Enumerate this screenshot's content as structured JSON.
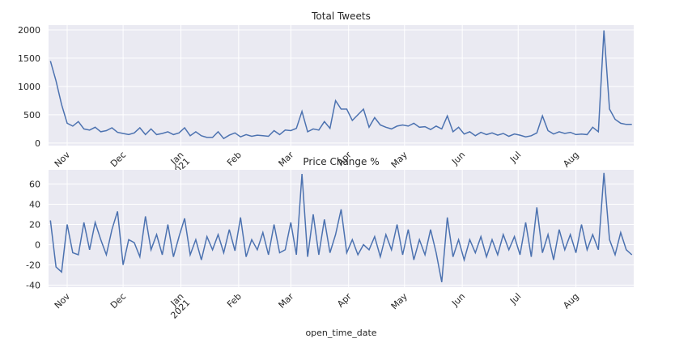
{
  "chart_data": [
    {
      "type": "line",
      "title": "Total Tweets",
      "x": [
        -9,
        -6,
        -3,
        0,
        3,
        6,
        9,
        12,
        15,
        18,
        21,
        24,
        27,
        30,
        33,
        36,
        39,
        42,
        45,
        48,
        51,
        54,
        57,
        60,
        63,
        66,
        69,
        72,
        75,
        78,
        81,
        84,
        87,
        90,
        93,
        96,
        99,
        102,
        105,
        108,
        111,
        114,
        117,
        120,
        123,
        126,
        129,
        132,
        135,
        138,
        141,
        144,
        147,
        150,
        153,
        156,
        159,
        162,
        165,
        168,
        171,
        174,
        177,
        180,
        183,
        186,
        189,
        192,
        195,
        198,
        201,
        204,
        207,
        210,
        213,
        216,
        219,
        222,
        225,
        228,
        231,
        234,
        237,
        240,
        243,
        246,
        249,
        252,
        255,
        258,
        261,
        264,
        267,
        270,
        273,
        276,
        279,
        282,
        285,
        288,
        291,
        294,
        297,
        300,
        303
      ],
      "series": [
        {
          "color": "#4c72b0",
          "values": [
            1450,
            1100,
            680,
            350,
            300,
            380,
            250,
            230,
            280,
            200,
            220,
            270,
            190,
            170,
            150,
            180,
            270,
            150,
            250,
            150,
            170,
            200,
            150,
            180,
            270,
            130,
            200,
            130,
            100,
            100,
            200,
            80,
            140,
            180,
            110,
            150,
            120,
            140,
            130,
            120,
            220,
            150,
            230,
            220,
            260,
            560,
            200,
            250,
            230,
            380,
            260,
            750,
            600,
            600,
            400,
            500,
            600,
            280,
            450,
            320,
            280,
            250,
            300,
            320,
            300,
            350,
            280,
            290,
            240,
            300,
            250,
            480,
            200,
            280,
            160,
            200,
            130,
            190,
            150,
            180,
            140,
            170,
            120,
            160,
            140,
            110,
            130,
            180,
            480,
            220,
            160,
            200,
            170,
            190,
            150,
            160,
            150,
            280,
            200,
            1990,
            600,
            420,
            350,
            330,
            330
          ]
        }
      ],
      "xlim": [
        -10,
        304
      ],
      "xticks": [
        {
          "value": 0,
          "label": "Nov"
        },
        {
          "value": 30,
          "label": "Dec"
        },
        {
          "value": 61,
          "label": "Jan\n2021"
        },
        {
          "value": 92,
          "label": "Feb"
        },
        {
          "value": 120,
          "label": "Mar"
        },
        {
          "value": 151,
          "label": "Apr"
        },
        {
          "value": 181,
          "label": "May"
        },
        {
          "value": 212,
          "label": "Jun"
        },
        {
          "value": 242,
          "label": "Jul"
        },
        {
          "value": 273,
          "label": "Aug"
        }
      ],
      "ylim": [
        -45,
        2085
      ],
      "yticks": [
        0,
        500,
        1000,
        1500,
        2000
      ],
      "grid": true
    },
    {
      "type": "line",
      "title": "Price Change %",
      "xlabel": "open_time_date",
      "x": [
        -9,
        -6,
        -3,
        0,
        3,
        6,
        9,
        12,
        15,
        18,
        21,
        24,
        27,
        30,
        33,
        36,
        39,
        42,
        45,
        48,
        51,
        54,
        57,
        60,
        63,
        66,
        69,
        72,
        75,
        78,
        81,
        84,
        87,
        90,
        93,
        96,
        99,
        102,
        105,
        108,
        111,
        114,
        117,
        120,
        123,
        126,
        129,
        132,
        135,
        138,
        141,
        144,
        147,
        150,
        153,
        156,
        159,
        162,
        165,
        168,
        171,
        174,
        177,
        180,
        183,
        186,
        189,
        192,
        195,
        198,
        201,
        204,
        207,
        210,
        213,
        216,
        219,
        222,
        225,
        228,
        231,
        234,
        237,
        240,
        243,
        246,
        249,
        252,
        255,
        258,
        261,
        264,
        267,
        270,
        273,
        276,
        279,
        282,
        285,
        288,
        291,
        294,
        297,
        300,
        303
      ],
      "series": [
        {
          "color": "#4c72b0",
          "values": [
            24,
            -22,
            -27,
            20,
            -8,
            -10,
            22,
            -5,
            22,
            5,
            -10,
            15,
            33,
            -20,
            5,
            2,
            -12,
            28,
            -5,
            10,
            -10,
            20,
            -12,
            8,
            26,
            -10,
            5,
            -15,
            8,
            -5,
            10,
            -8,
            15,
            -6,
            27,
            -12,
            5,
            -5,
            12,
            -10,
            20,
            -8,
            -5,
            22,
            -10,
            70,
            -12,
            30,
            -10,
            25,
            -8,
            10,
            35,
            -8,
            5,
            -10,
            0,
            -5,
            8,
            -12,
            10,
            -5,
            20,
            -10,
            15,
            -15,
            5,
            -10,
            15,
            -8,
            -37,
            27,
            -12,
            5,
            -15,
            5,
            -8,
            8,
            -12,
            5,
            -10,
            10,
            -5,
            8,
            -10,
            22,
            -12,
            37,
            -8,
            10,
            -15,
            15,
            -5,
            10,
            -8,
            20,
            -5,
            10,
            -5,
            71,
            5,
            -10,
            12,
            -5,
            -10
          ]
        }
      ],
      "xlim": [
        -10,
        304
      ],
      "xticks": [
        {
          "value": 0,
          "label": "Nov"
        },
        {
          "value": 30,
          "label": "Dec"
        },
        {
          "value": 61,
          "label": "Jan\n2021"
        },
        {
          "value": 92,
          "label": "Feb"
        },
        {
          "value": 120,
          "label": "Mar"
        },
        {
          "value": 151,
          "label": "Apr"
        },
        {
          "value": 181,
          "label": "May"
        },
        {
          "value": 212,
          "label": "Jun"
        },
        {
          "value": 242,
          "label": "Jul"
        },
        {
          "value": 273,
          "label": "Aug"
        }
      ],
      "ylim": [
        -42,
        74
      ],
      "yticks": [
        -40,
        -20,
        0,
        20,
        40,
        60
      ],
      "grid": true
    }
  ]
}
